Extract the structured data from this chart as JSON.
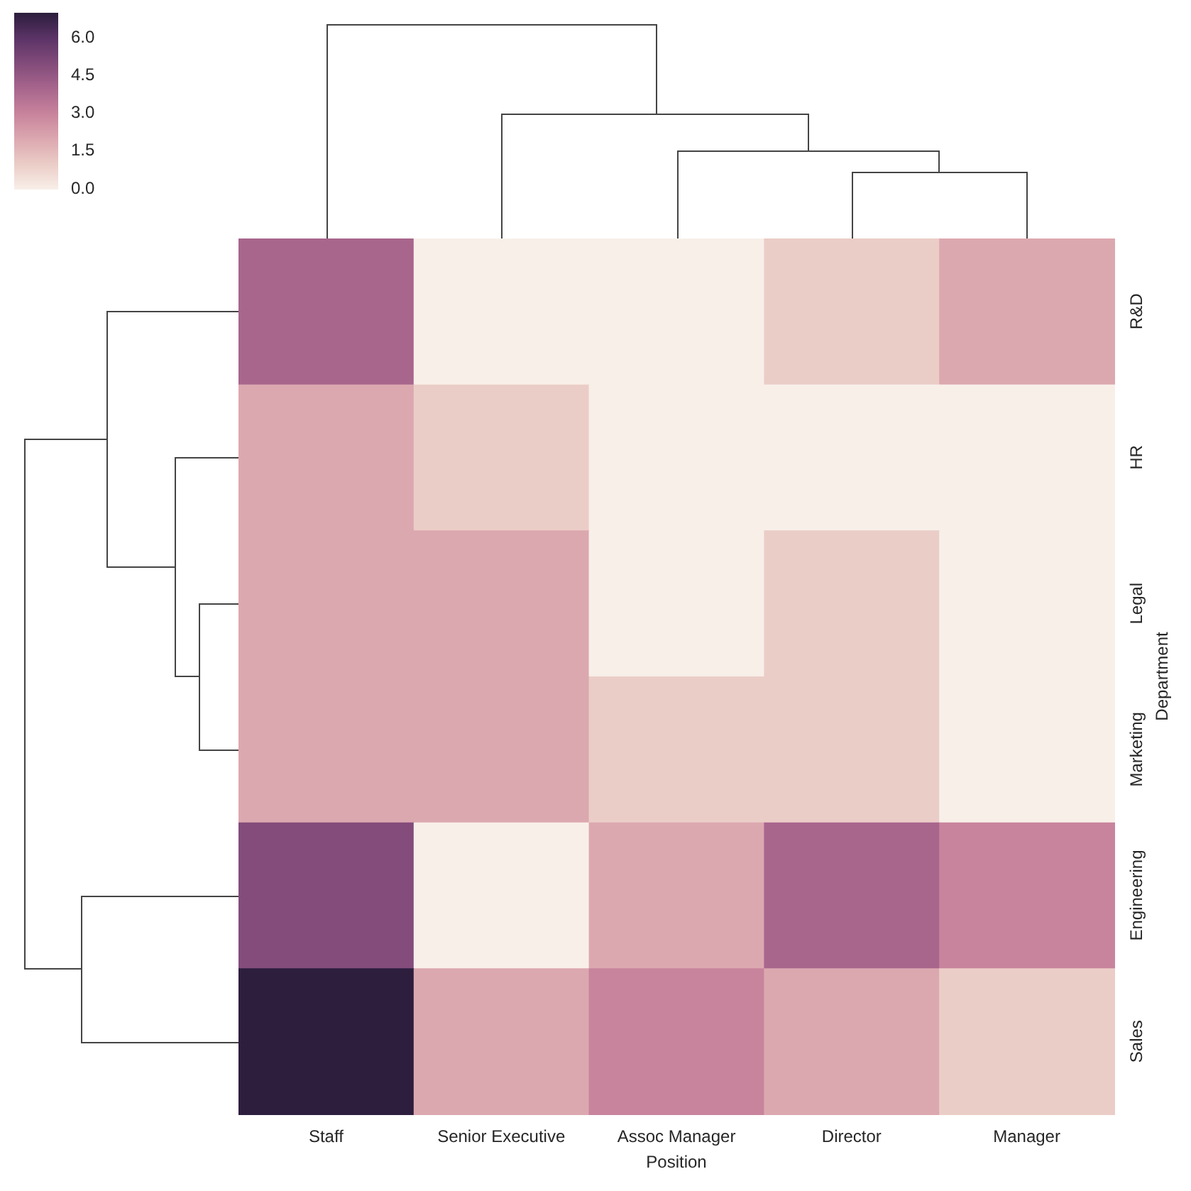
{
  "chart_data": {
    "type": "heatmap",
    "categories": [
      "Staff",
      "Senior Executive",
      "Assoc Manager",
      "Director",
      "Manager"
    ],
    "y_categories": [
      "R&D",
      "HR",
      "Legal",
      "Marketing",
      "Engineering",
      "Sales"
    ],
    "cells": [
      [
        4,
        0,
        0,
        1,
        2
      ],
      [
        2,
        1,
        0,
        0,
        0
      ],
      [
        2,
        2,
        0,
        1,
        0
      ],
      [
        2,
        2,
        1,
        1,
        0
      ],
      [
        5,
        0,
        2,
        4,
        3
      ],
      [
        7,
        2,
        3,
        2,
        1
      ]
    ],
    "xlabel": "Position",
    "ylabel": "Department",
    "clim": [
      0,
      7
    ],
    "cticks": [
      {
        "value": 0,
        "label": "0.0"
      },
      {
        "value": 1.5,
        "label": "1.5"
      },
      {
        "value": 3,
        "label": "3.0"
      },
      {
        "value": 4.5,
        "label": "4.5"
      },
      {
        "value": 6,
        "label": "6.0"
      }
    ]
  }
}
